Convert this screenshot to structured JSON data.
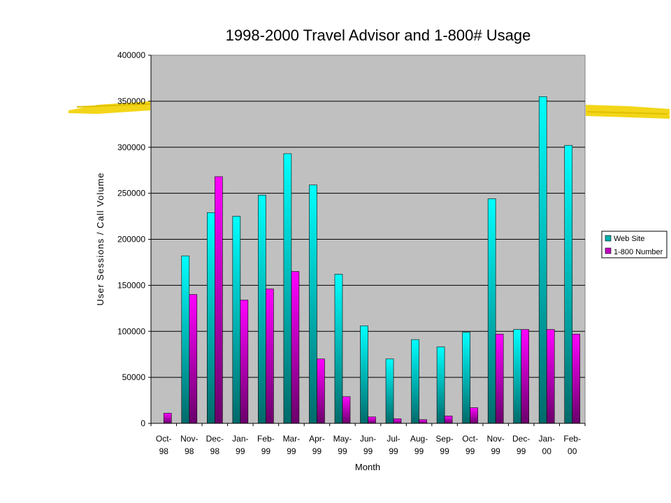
{
  "chart_data": {
    "type": "bar",
    "title": "1998-2000 Travel Advisor and 1-800# Usage",
    "xlabel": "Month",
    "ylabel": "User Sessions / Call Volume",
    "ylim": [
      0,
      400000
    ],
    "yticks": [
      "0",
      "50000",
      "100000",
      "150000",
      "200000",
      "250000",
      "300000",
      "350000",
      "400000"
    ],
    "grid": true,
    "legend_position": "right",
    "categories": [
      [
        "Oct-",
        "98"
      ],
      [
        "Nov-",
        "98"
      ],
      [
        "Dec-",
        "98"
      ],
      [
        "Jan-",
        "99"
      ],
      [
        "Feb-",
        "99"
      ],
      [
        "Mar-",
        "99"
      ],
      [
        "Apr-",
        "99"
      ],
      [
        "May-",
        "99"
      ],
      [
        "Jun-",
        "99"
      ],
      [
        "Jul-",
        "99"
      ],
      [
        "Aug-",
        "99"
      ],
      [
        "Sep-",
        "99"
      ],
      [
        "Oct-",
        "99"
      ],
      [
        "Nov-",
        "99"
      ],
      [
        "Dec-",
        "99"
      ],
      [
        "Jan-",
        "00"
      ],
      [
        "Feb-",
        "00"
      ]
    ],
    "series": [
      {
        "name": "Web Site",
        "color_top": "#00ffff",
        "color_bottom": "#006a6a",
        "values": [
          0,
          182000,
          229000,
          225000,
          248000,
          293000,
          259000,
          162000,
          106000,
          70000,
          91000,
          83000,
          99000,
          244000,
          102000,
          355000,
          302000
        ]
      },
      {
        "name": "1-800 Number",
        "color_top": "#ff00ff",
        "color_bottom": "#6a006a",
        "values": [
          11000,
          140000,
          268000,
          134000,
          146000,
          165000,
          70000,
          29000,
          7000,
          5000,
          4000,
          8000,
          17000,
          97000,
          102000,
          102000,
          97000
        ]
      }
    ]
  },
  "colors": {
    "plot_background": "#c0c0c0",
    "highlighter_stroke": "#f2d200"
  }
}
